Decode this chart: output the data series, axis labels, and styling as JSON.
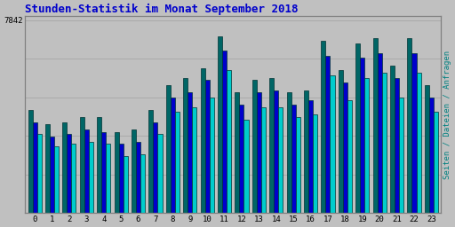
{
  "title": "Stunden-Statistik im Monat September 2018",
  "title_color": "#0000cc",
  "ylabel_right": "Seiten / Dateien / Anfragen",
  "ylabel_right_color": "#008080",
  "ytick_label": "7842",
  "background_color": "#c0c0c0",
  "plot_bg_color": "#c0c0c0",
  "bar_width": 0.26,
  "hours": [
    0,
    1,
    2,
    3,
    4,
    5,
    6,
    7,
    8,
    9,
    10,
    11,
    12,
    13,
    14,
    15,
    16,
    17,
    18,
    19,
    20,
    21,
    22,
    23
  ],
  "seiten": [
    4200,
    3600,
    3700,
    3900,
    3900,
    3300,
    3400,
    4200,
    5200,
    5500,
    5900,
    7200,
    4900,
    5400,
    5500,
    4900,
    5000,
    7000,
    5800,
    6900,
    7100,
    6000,
    7100,
    5200
  ],
  "dateien": [
    3700,
    3100,
    3200,
    3400,
    3300,
    2800,
    2900,
    3700,
    4700,
    4900,
    5400,
    6600,
    4400,
    4900,
    5000,
    4400,
    4600,
    6400,
    5300,
    6300,
    6500,
    5500,
    6500,
    4700
  ],
  "anfragen": [
    3200,
    2700,
    2800,
    2900,
    2800,
    2300,
    2400,
    3200,
    4100,
    4300,
    4700,
    5800,
    3800,
    4300,
    4300,
    3900,
    4000,
    5600,
    4600,
    5500,
    5700,
    4700,
    5700,
    4100
  ],
  "color_seiten": "#006666",
  "color_dateien": "#0000cc",
  "color_anfragen": "#00cccc",
  "edge_color": "#003333",
  "grid_color": "#aaaaaa",
  "border_color": "#808080",
  "ymax": 7842,
  "n_gridlines": 5
}
